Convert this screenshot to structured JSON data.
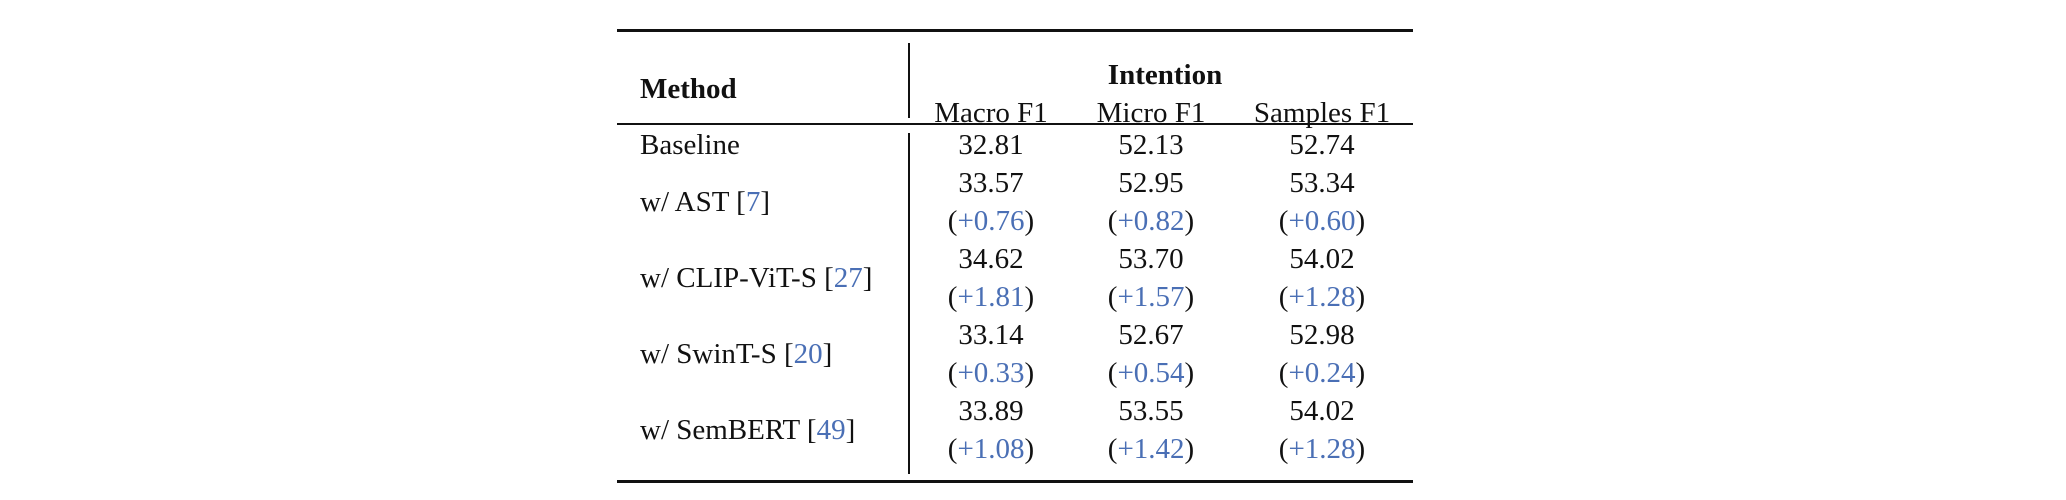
{
  "header": {
    "method": "Method",
    "group": "Intention",
    "columns": [
      "Macro F1",
      "Micro F1",
      "Samples F1"
    ]
  },
  "rows": [
    {
      "method": "Baseline",
      "cite": "",
      "values": [
        "32.81",
        "52.13",
        "52.74"
      ],
      "deltas": []
    },
    {
      "method": "w/ AST",
      "cite": "7",
      "values": [
        "33.57",
        "52.95",
        "53.34"
      ],
      "deltas": [
        "+0.76",
        "+0.82",
        "+0.60"
      ]
    },
    {
      "method": "w/ CLIP-ViT-S",
      "cite": "27",
      "values": [
        "34.62",
        "53.70",
        "54.02"
      ],
      "deltas": [
        "+1.81",
        "+1.57",
        "+1.28"
      ]
    },
    {
      "method": "w/ SwinT-S",
      "cite": "20",
      "values": [
        "33.14",
        "52.67",
        "52.98"
      ],
      "deltas": [
        "+0.33",
        "+0.54",
        "+0.24"
      ]
    },
    {
      "method": "w/ SemBERT",
      "cite": "49",
      "values": [
        "33.89",
        "53.55",
        "54.02"
      ],
      "deltas": [
        "+1.08",
        "+1.42",
        "+1.28"
      ]
    }
  ],
  "colors": {
    "delta": "#4a6fb5",
    "cite": "#4a6fb5"
  }
}
